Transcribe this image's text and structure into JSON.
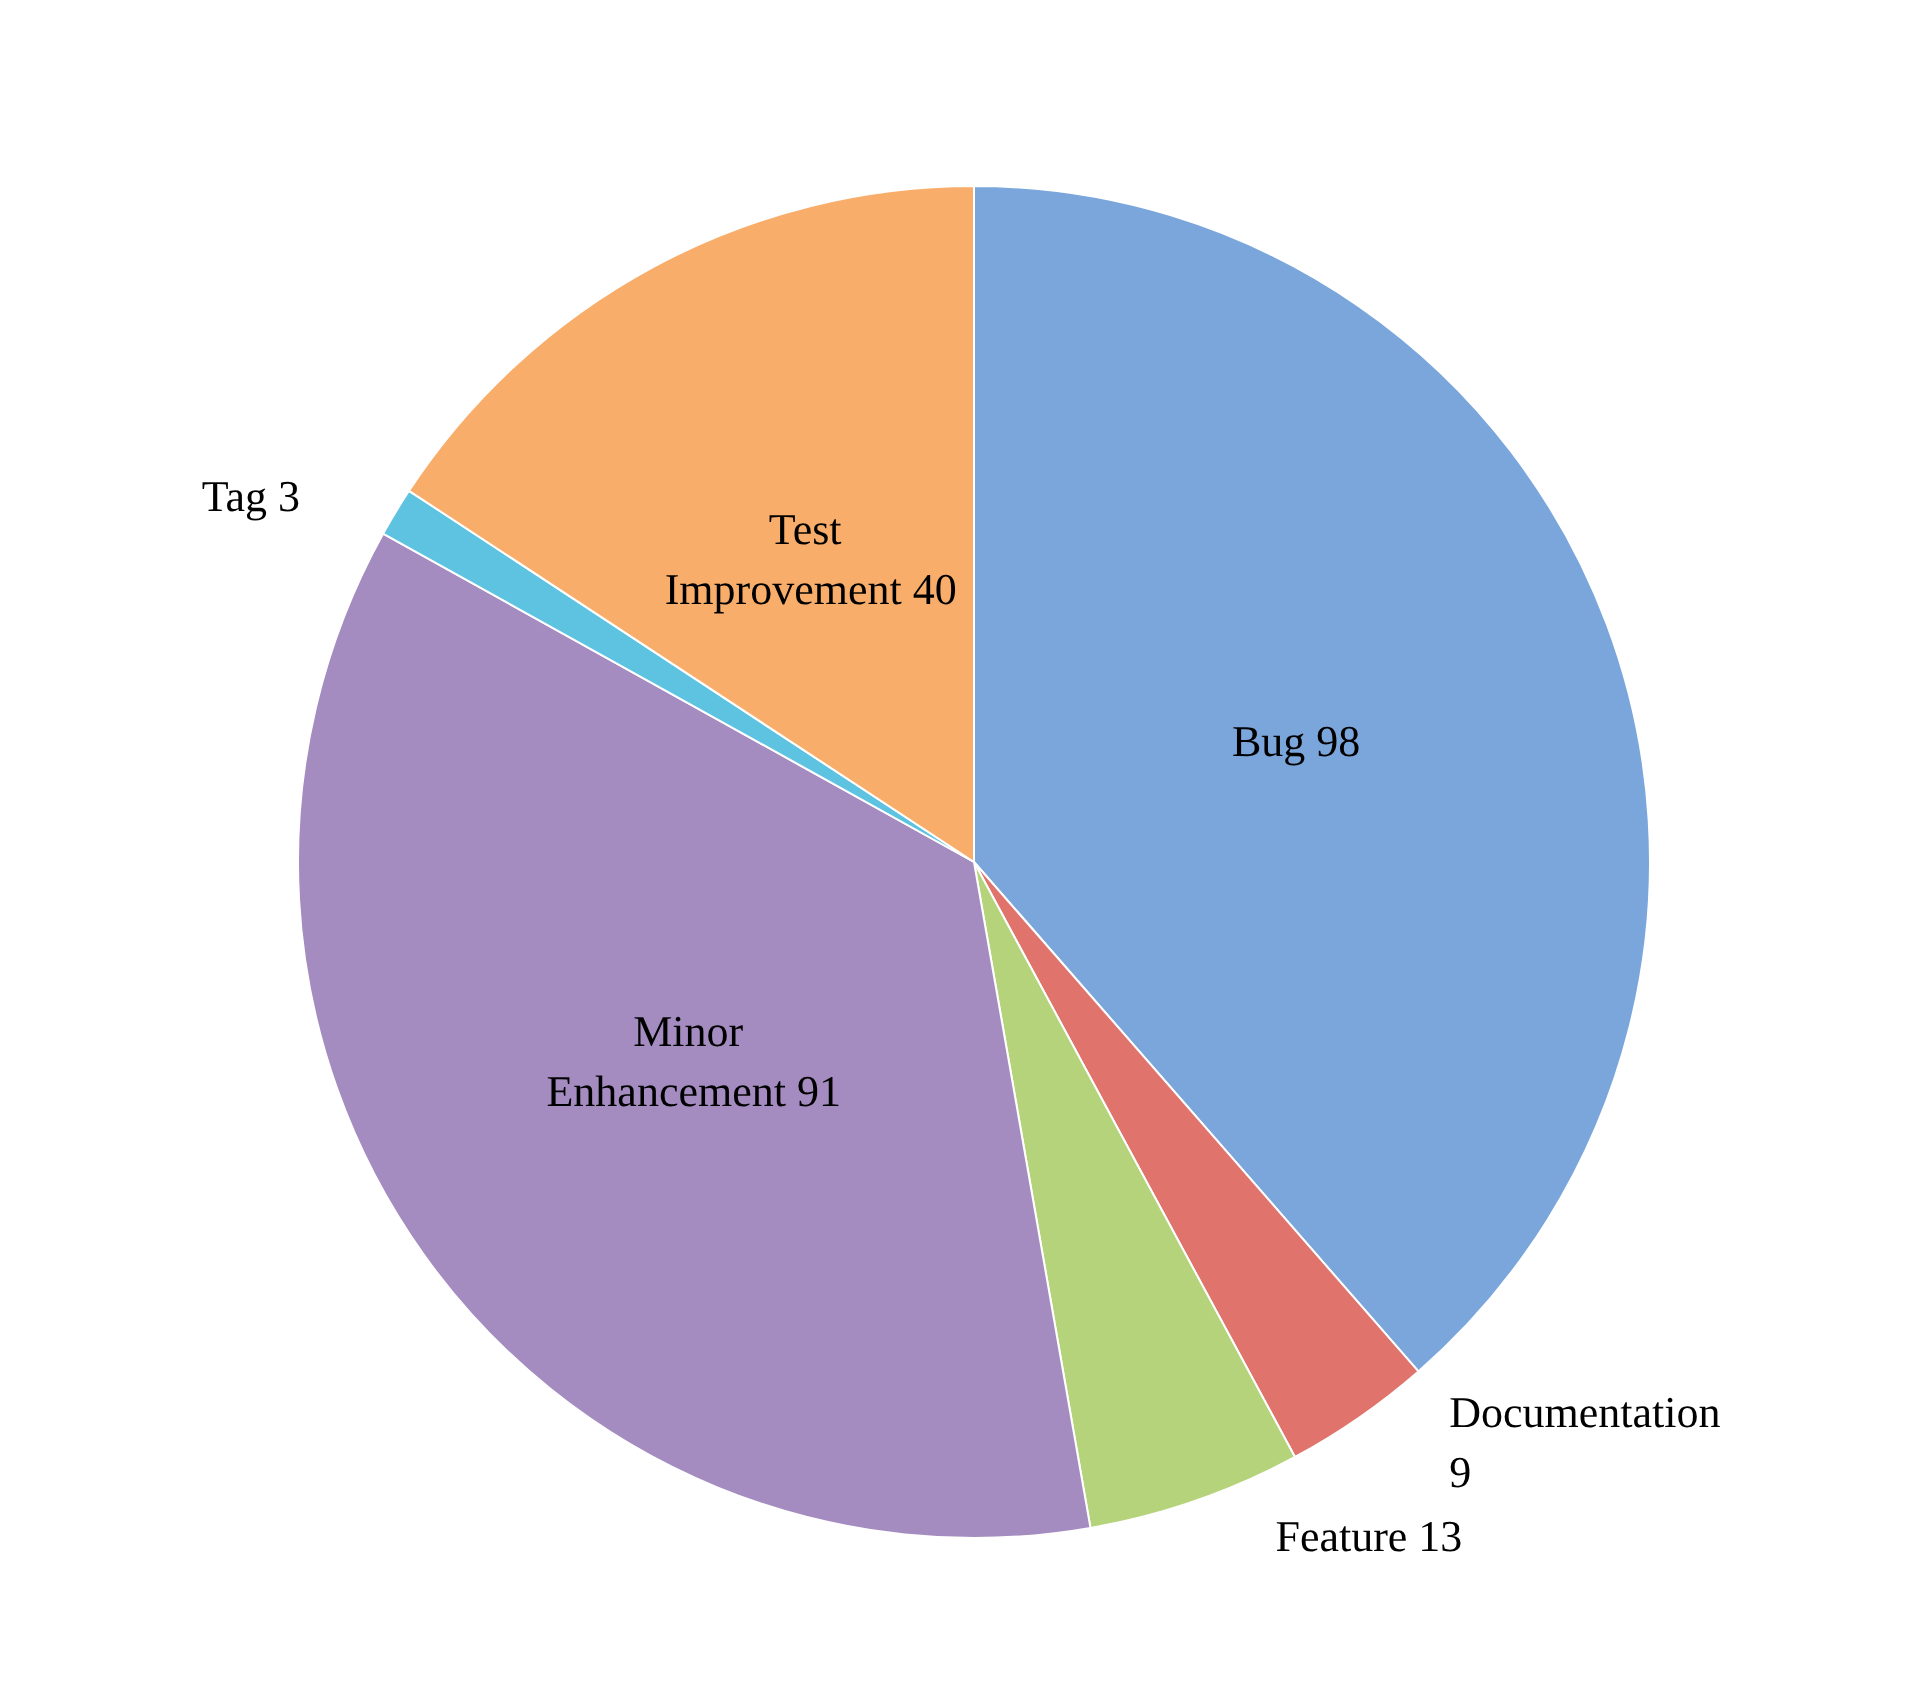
{
  "chart_data": {
    "type": "pie",
    "categories": [
      "Bug",
      "Documentation",
      "Feature",
      "Minor Enhancement",
      "Tag",
      "Test Improvement"
    ],
    "values": [
      98,
      9,
      13,
      91,
      3,
      40
    ],
    "colors": [
      "#7aa6dc",
      "#e0736b",
      "#b5d37a",
      "#a48bc0",
      "#5ec3e0",
      "#f9ad6a"
    ],
    "data_labels": true,
    "legend": false
  }
}
